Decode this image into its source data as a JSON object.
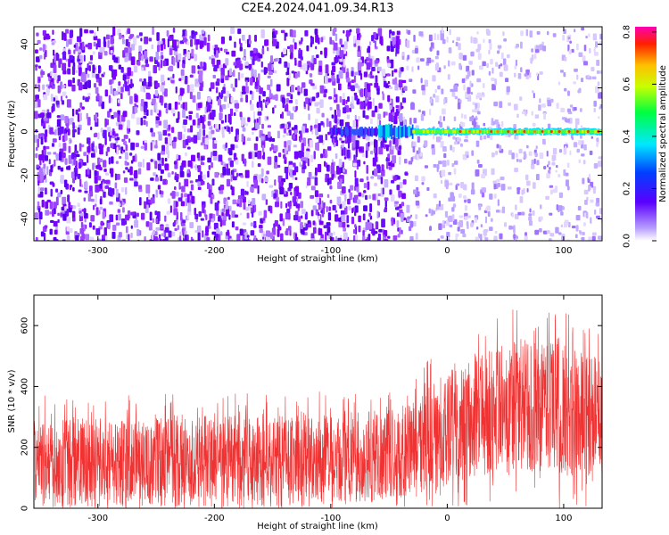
{
  "title": "C2E4.2024.041.09.34.R13",
  "chart_data": [
    {
      "type": "heatmap",
      "xlabel": "Height of straight line (km)",
      "ylabel": "Frequency (Hz)",
      "xlim": [
        -355,
        133
      ],
      "ylim": [
        -50,
        48
      ],
      "x_ticks": [
        -300,
        -200,
        -100,
        0,
        100
      ],
      "x_tick_labels": [
        "-300",
        "-200",
        "-100",
        "0",
        "100"
      ],
      "y_ticks": [
        -40,
        -20,
        0,
        20,
        40
      ],
      "y_tick_labels": [
        "-40",
        "-20",
        "0",
        "20",
        "40"
      ],
      "colorbar": {
        "label": "Normalized spectral amplitude",
        "range": [
          0.0,
          0.82
        ],
        "ticks": [
          0.0,
          0.2,
          0.4,
          0.6,
          0.8
        ],
        "tick_labels": [
          "0.0",
          "0.2",
          "0.4",
          "0.6",
          "0.8"
        ]
      },
      "features": {
        "dense_noise_x_range": [
          -355,
          -35
        ],
        "sparse_noise_x_range": [
          -35,
          133
        ],
        "signal_band": {
          "x_range": [
            -100,
            133
          ],
          "frequency": 0,
          "peak_amplitude": 0.8
        }
      },
      "grid": false
    },
    {
      "type": "line",
      "xlabel": "Height of straight line (km)",
      "ylabel": "SNR (10 * v/v)",
      "xlim": [
        -355,
        133
      ],
      "ylim": [
        0,
        700
      ],
      "x_ticks": [
        -300,
        -200,
        -100,
        0,
        100
      ],
      "x_tick_labels": [
        "-300",
        "-200",
        "-100",
        "0",
        "100"
      ],
      "y_ticks": [
        0,
        200,
        400,
        600
      ],
      "y_tick_labels": [
        "0",
        "200",
        "400",
        "600"
      ],
      "line_color": "#f03232",
      "envelope": [
        {
          "x": -355,
          "low": 10,
          "mid": 150,
          "high": 300
        },
        {
          "x": -200,
          "low": 10,
          "mid": 150,
          "high": 300
        },
        {
          "x": -100,
          "low": 15,
          "mid": 160,
          "high": 310
        },
        {
          "x": -40,
          "low": 20,
          "mid": 170,
          "high": 330
        },
        {
          "x": -10,
          "low": 60,
          "mid": 240,
          "high": 420
        },
        {
          "x": 20,
          "low": 100,
          "mid": 310,
          "high": 500
        },
        {
          "x": 60,
          "low": 120,
          "mid": 340,
          "high": 560
        },
        {
          "x": 100,
          "low": 100,
          "mid": 330,
          "high": 540
        },
        {
          "x": 133,
          "low": 110,
          "mid": 300,
          "high": 500
        }
      ],
      "grid": false
    }
  ]
}
